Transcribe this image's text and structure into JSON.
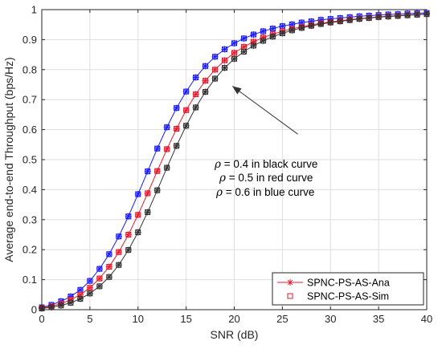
{
  "chart_data": {
    "type": "line",
    "xlabel": "SNR (dB)",
    "ylabel": "Average end-to-end Throughput (bps/Hz)",
    "xlim": [
      0,
      40
    ],
    "ylim": [
      0,
      1
    ],
    "xticks": [
      "0",
      "5",
      "10",
      "15",
      "20",
      "25",
      "30",
      "35",
      "40"
    ],
    "yticks": [
      "0",
      "0.1",
      "0.2",
      "0.3",
      "0.4",
      "0.5",
      "0.6",
      "0.7",
      "0.8",
      "0.9",
      "1"
    ],
    "grid": true,
    "legend_position": "bottom-right",
    "legend": [
      {
        "label": "SPNC-PS-AS-Ana",
        "marker": "asterisk",
        "color": "#e8192c"
      },
      {
        "label": "SPNC-PS-AS-Sim",
        "marker": "square",
        "color": "#e8192c"
      }
    ],
    "annotation": {
      "lines": [
        {
          "symbol": "ρ",
          "text": " = 0.4 in black curve"
        },
        {
          "symbol": "ρ",
          "text": " = 0.5 in red curve"
        },
        {
          "symbol": "ρ",
          "text": " = 0.6 in blue curve"
        }
      ],
      "arrow_tip": [
        19.8,
        0.745
      ],
      "arrow_tail": [
        26.6,
        0.585
      ]
    },
    "x": [
      0,
      1,
      2,
      3,
      4,
      5,
      6,
      7,
      8,
      9,
      10,
      11,
      12,
      13,
      14,
      15,
      16,
      17,
      18,
      19,
      20,
      21,
      22,
      23,
      24,
      25,
      26,
      27,
      28,
      29,
      30,
      31,
      32,
      33,
      34,
      35,
      36,
      37,
      38,
      39,
      40
    ],
    "series": [
      {
        "color": "#1a1aff",
        "values": [
          0.008,
          0.016,
          0.028,
          0.044,
          0.066,
          0.096,
          0.136,
          0.185,
          0.244,
          0.311,
          0.385,
          0.461,
          0.537,
          0.608,
          0.672,
          0.727,
          0.774,
          0.812,
          0.843,
          0.868,
          0.888,
          0.904,
          0.917,
          0.928,
          0.937,
          0.945,
          0.951,
          0.957,
          0.961,
          0.966,
          0.969,
          0.972,
          0.975,
          0.978,
          0.98,
          0.982,
          0.984,
          0.985,
          0.987,
          0.988,
          0.989
        ]
      },
      {
        "color": "#e8192c",
        "values": [
          0.006,
          0.011,
          0.02,
          0.033,
          0.05,
          0.073,
          0.104,
          0.143,
          0.192,
          0.25,
          0.316,
          0.388,
          0.462,
          0.535,
          0.603,
          0.665,
          0.718,
          0.763,
          0.8,
          0.831,
          0.856,
          0.876,
          0.893,
          0.907,
          0.918,
          0.928,
          0.936,
          0.943,
          0.949,
          0.955,
          0.959,
          0.963,
          0.967,
          0.97,
          0.973,
          0.976,
          0.978,
          0.98,
          0.982,
          0.984,
          0.985
        ]
      },
      {
        "color": "#333333",
        "values": [
          0.004,
          0.008,
          0.014,
          0.023,
          0.036,
          0.054,
          0.078,
          0.109,
          0.149,
          0.199,
          0.258,
          0.325,
          0.398,
          0.473,
          0.546,
          0.613,
          0.674,
          0.726,
          0.77,
          0.806,
          0.836,
          0.86,
          0.88,
          0.896,
          0.91,
          0.921,
          0.931,
          0.939,
          0.946,
          0.952,
          0.957,
          0.961,
          0.965,
          0.969,
          0.972,
          0.975,
          0.977,
          0.979,
          0.981,
          0.983,
          0.985
        ]
      }
    ]
  }
}
